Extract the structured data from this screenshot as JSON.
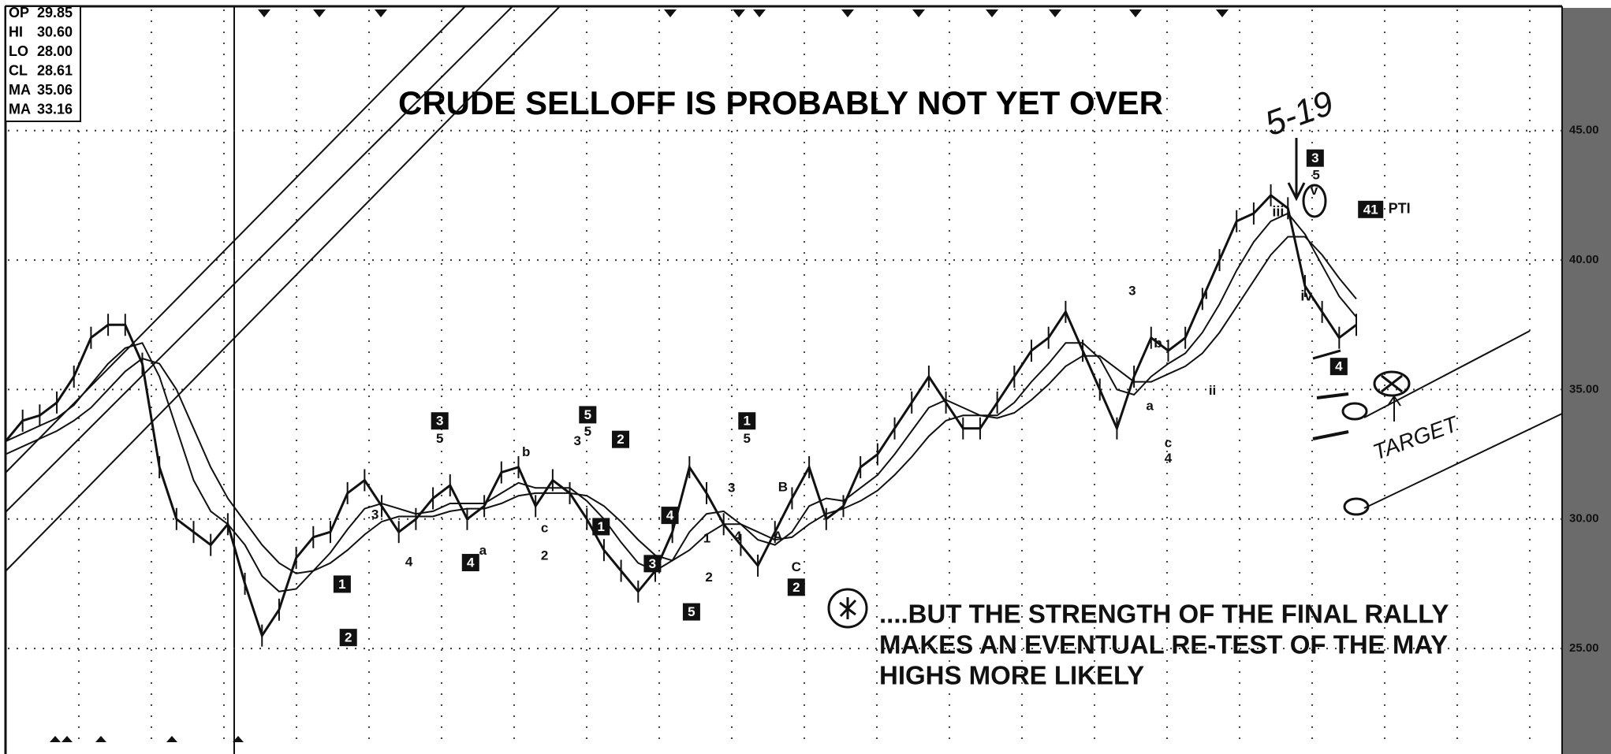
{
  "chart_data": {
    "type": "line",
    "title": "CRUDE SELLOFF IS PROBABLY NOT YET OVER",
    "note": [
      "....BUT THE STRENGTH OF THE FINAL RALLY",
      "MAKES AN EVENTUAL RE-TEST OF THE MAY",
      "HIGHS MORE LIKELY"
    ],
    "handwritten": [
      "5-19",
      "TARGET"
    ],
    "info": [
      {
        "label": "OP",
        "value": "29.85"
      },
      {
        "label": "HI",
        "value": "30.60"
      },
      {
        "label": "LO",
        "value": "28.00"
      },
      {
        "label": "CL",
        "value": "28.61"
      },
      {
        "label": "MA",
        "value": "35.06"
      },
      {
        "label": "MA",
        "value": "33.16"
      }
    ],
    "ylim": [
      21.2,
      49.8
    ],
    "yticks": [
      {
        "value": 25,
        "label": "25.00"
      },
      {
        "value": 30,
        "label": "30.00"
      },
      {
        "value": 35,
        "label": "35.00"
      },
      {
        "value": 40,
        "label": "40.00"
      },
      {
        "value": 45,
        "label": "45.00"
      }
    ],
    "grid": true,
    "series": [
      {
        "color": "#111",
        "values": [
          33.0,
          33.8,
          34.0,
          34.5,
          35.5,
          37.0,
          37.5,
          37.5,
          36.0,
          32.0,
          30.0,
          29.5,
          29.0,
          29.8,
          27.5,
          25.5,
          26.5,
          28.5,
          29.3,
          29.5,
          31.0,
          31.5,
          30.5,
          29.5,
          30.0,
          30.8,
          31.3,
          30.0,
          30.5,
          31.8,
          32.0,
          30.5,
          31.5,
          31.0,
          30.0,
          28.8,
          28.0,
          27.2,
          28.0,
          29.5,
          32.0,
          31.0,
          29.8,
          29.0,
          28.2,
          29.5,
          30.8,
          32.0,
          30.0,
          30.5,
          32.0,
          32.5,
          33.5,
          34.5,
          35.5,
          34.5,
          33.5,
          33.5,
          34.5,
          35.5,
          36.5,
          37.0,
          38.0,
          36.5,
          35.0,
          33.5,
          35.5,
          37.0,
          36.5,
          37.0,
          38.5,
          40.0,
          41.5,
          41.8,
          42.5,
          42.0,
          39.0,
          38.0,
          37.0,
          37.5
        ]
      },
      {
        "color": "#111",
        "values": [
          33.0,
          33.3,
          33.6,
          33.9,
          34.4,
          35.2,
          36.0,
          36.6,
          36.8,
          35.5,
          33.5,
          31.5,
          30.3,
          29.8,
          29.0,
          27.8,
          27.2,
          27.3,
          28.0,
          28.7,
          29.6,
          30.4,
          30.6,
          30.4,
          30.2,
          30.3,
          30.6,
          30.6,
          30.6,
          31.0,
          31.4,
          31.2,
          31.2,
          31.2,
          30.7,
          30.0,
          29.1,
          28.3,
          28.0,
          28.4,
          29.5,
          30.2,
          30.3,
          29.8,
          29.2,
          29.0,
          29.5,
          30.5,
          30.8,
          30.7,
          31.2,
          31.7,
          32.5,
          33.4,
          34.3,
          34.6,
          34.3,
          34.0,
          34.0,
          34.5,
          35.3,
          36.0,
          36.8,
          36.8,
          36.2,
          35.0,
          34.8,
          35.5,
          36.0,
          36.4,
          37.2,
          38.3,
          39.6,
          40.7,
          41.5,
          41.8,
          41.0,
          39.8,
          38.6,
          37.8
        ]
      },
      {
        "color": "#111",
        "values": [
          32.5,
          32.8,
          33.1,
          33.4,
          33.8,
          34.3,
          35.0,
          35.7,
          36.2,
          36.0,
          35.0,
          33.5,
          32.0,
          30.8,
          29.9,
          29.0,
          28.3,
          27.9,
          28.0,
          28.3,
          28.8,
          29.4,
          29.9,
          30.1,
          30.1,
          30.1,
          30.3,
          30.4,
          30.4,
          30.6,
          30.9,
          31.0,
          31.0,
          31.0,
          30.9,
          30.5,
          29.9,
          29.2,
          28.6,
          28.4,
          28.8,
          29.4,
          29.8,
          29.8,
          29.5,
          29.2,
          29.3,
          29.8,
          30.2,
          30.4,
          30.7,
          31.1,
          31.7,
          32.4,
          33.2,
          33.8,
          34.0,
          34.0,
          33.9,
          34.1,
          34.6,
          35.2,
          35.9,
          36.3,
          36.3,
          35.8,
          35.3,
          35.3,
          35.6,
          35.9,
          36.4,
          37.2,
          38.2,
          39.2,
          40.2,
          40.9,
          40.9,
          40.2,
          39.3,
          38.5
        ]
      }
    ],
    "annotations": [
      {
        "text": "3",
        "boxed": true
      },
      {
        "text": "5",
        "boxed": true
      },
      {
        "text": "1",
        "boxed": true
      },
      {
        "text": "2",
        "boxed": true
      },
      {
        "text": "1",
        "boxed": true
      },
      {
        "text": "4",
        "boxed": true
      },
      {
        "text": "4",
        "boxed": true
      },
      {
        "text": "3",
        "boxed": true
      },
      {
        "text": "5",
        "boxed": true
      },
      {
        "text": "2",
        "boxed": true
      },
      {
        "text": "1",
        "boxed": true
      },
      {
        "text": "2",
        "boxed": true
      },
      {
        "text": "3",
        "boxed": true
      },
      {
        "text": "4",
        "boxed": true
      },
      {
        "text": "41",
        "boxed": true
      },
      {
        "text": "5",
        "boxed": false
      },
      {
        "text": "5",
        "boxed": false
      },
      {
        "text": "5",
        "boxed": false
      },
      {
        "text": "b",
        "boxed": false
      },
      {
        "text": "3",
        "boxed": false
      },
      {
        "text": "c",
        "boxed": false
      },
      {
        "text": "2",
        "boxed": false
      },
      {
        "text": "a",
        "boxed": false
      },
      {
        "text": "3",
        "boxed": false
      },
      {
        "text": "4",
        "boxed": false
      },
      {
        "text": "1",
        "boxed": false
      },
      {
        "text": "2",
        "boxed": false
      },
      {
        "text": "3",
        "boxed": false
      },
      {
        "text": "4",
        "boxed": false
      },
      {
        "text": "B",
        "boxed": false
      },
      {
        "text": "A",
        "boxed": false
      },
      {
        "text": "C",
        "boxed": false
      },
      {
        "text": "3",
        "boxed": false
      },
      {
        "text": "b",
        "boxed": false
      },
      {
        "text": "a",
        "boxed": false
      },
      {
        "text": "c",
        "boxed": false
      },
      {
        "text": "4",
        "boxed": false
      },
      {
        "text": "i",
        "boxed": false
      },
      {
        "text": "ii",
        "boxed": false
      },
      {
        "text": "iii",
        "boxed": false
      },
      {
        "text": "iv.",
        "boxed": false
      },
      {
        "text": "v",
        "boxed": false
      },
      {
        "text": "5",
        "boxed": false
      },
      {
        "text": "PTI",
        "boxed": false
      }
    ]
  }
}
